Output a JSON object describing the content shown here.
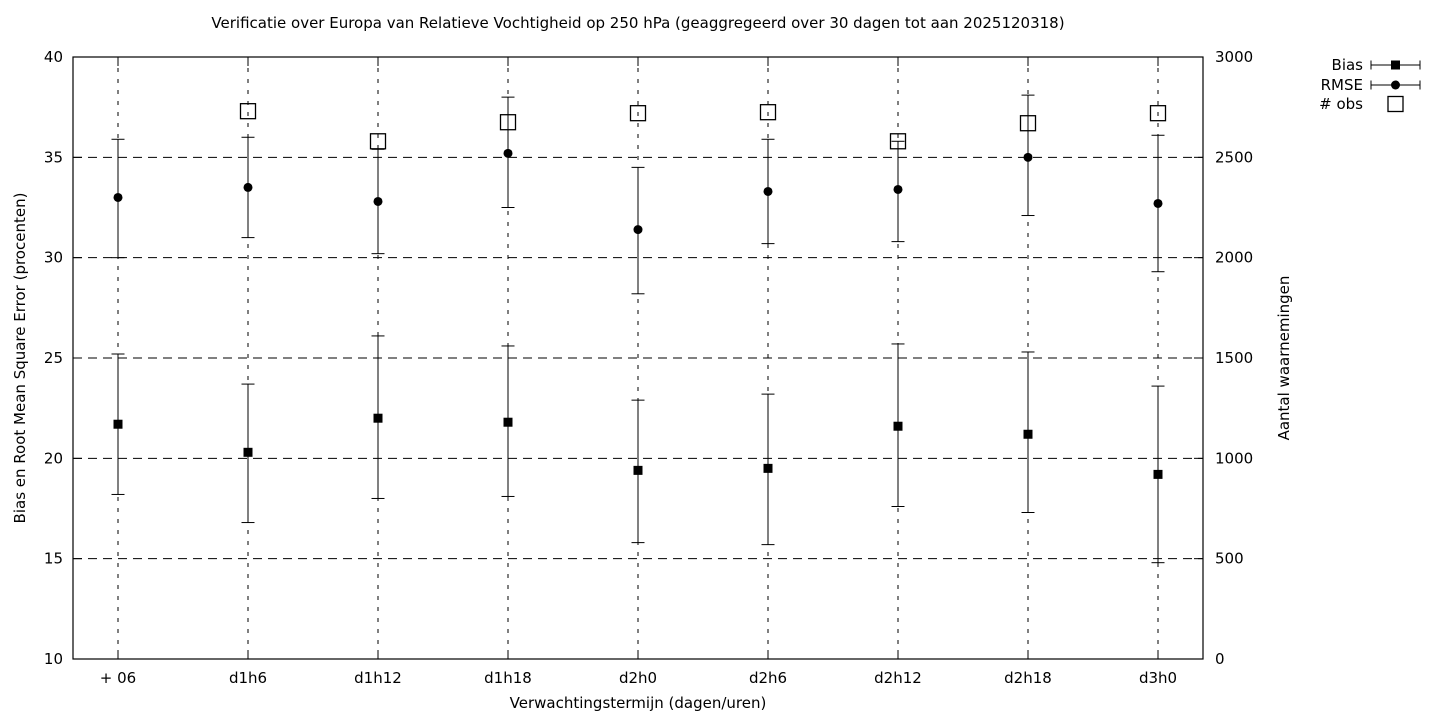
{
  "colors": {
    "foreground": "#000000",
    "background": "#ffffff"
  },
  "chart_data": {
    "type": "scatter",
    "title": "Verificatie over Europa van Relatieve Vochtigheid op 250 hPa (geaggregeerd over 30 dagen tot aan 2025120318)",
    "xlabel": "Verwachtingstermijn (dagen/uren)",
    "ylabel_left": "Bias en Root Mean Square Error (procenten)",
    "ylabel_right": "Aantal waarnemingen",
    "categories": [
      "+ 06",
      "d1h6",
      "d1h12",
      "d1h18",
      "d2h0",
      "d2h6",
      "d2h12",
      "d2h18",
      "d3h0"
    ],
    "ylim_left": [
      10,
      40
    ],
    "ylim_right": [
      0,
      3000
    ],
    "yticks_left": [
      10,
      15,
      20,
      25,
      30,
      35,
      40
    ],
    "yticks_right": [
      0,
      500,
      1000,
      1500,
      2000,
      2500,
      3000
    ],
    "grid": "dashed-both-directions",
    "legend_position": "top-right-outside",
    "series": [
      {
        "name": "Bias",
        "axis": "left",
        "marker": "filled-square",
        "errorbars": true,
        "values": [
          21.7,
          20.3,
          22.0,
          21.8,
          19.4,
          19.5,
          21.6,
          21.2,
          19.2
        ],
        "err_low": [
          18.2,
          16.8,
          18.0,
          18.1,
          15.8,
          15.7,
          17.6,
          17.3,
          14.8
        ],
        "err_high": [
          25.2,
          23.7,
          26.1,
          25.6,
          22.9,
          23.2,
          25.7,
          25.3,
          23.6
        ]
      },
      {
        "name": "RMSE",
        "axis": "left",
        "marker": "filled-circle",
        "errorbars": true,
        "values": [
          33.0,
          33.5,
          32.8,
          35.2,
          31.4,
          33.3,
          33.4,
          35.0,
          32.7
        ],
        "err_low": [
          30.0,
          31.0,
          30.2,
          32.5,
          28.2,
          30.7,
          30.8,
          32.1,
          29.3
        ],
        "err_high": [
          35.9,
          36.0,
          35.4,
          38.0,
          34.5,
          35.9,
          35.8,
          38.1,
          36.1
        ]
      },
      {
        "name": "# obs",
        "axis": "right",
        "marker": "open-square",
        "errorbars": false,
        "values": [
          null,
          2730,
          2580,
          2675,
          2720,
          2725,
          2580,
          2670,
          2720
        ]
      }
    ]
  }
}
